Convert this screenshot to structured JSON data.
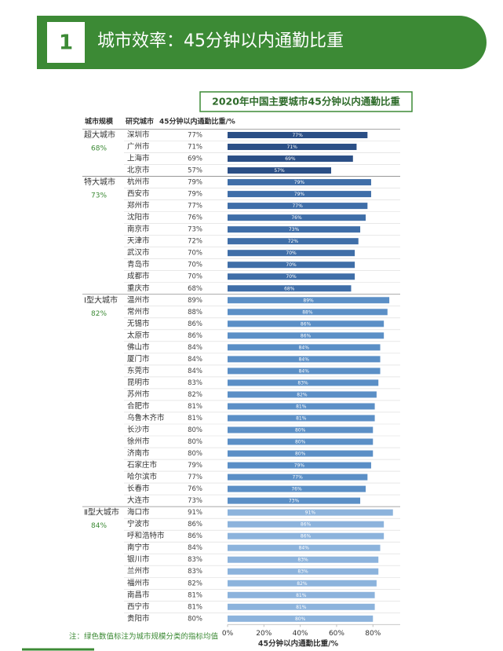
{
  "slide": {
    "number": "1",
    "title": "城市效率：45分钟以内通勤比重"
  },
  "chart_data": {
    "type": "bar",
    "orientation": "horizontal",
    "title": "2020年中国主要城市45分钟以内通勤比重",
    "headers": [
      "城市规模",
      "研究城市",
      "45分钟以内通勤比重/%"
    ],
    "xlabel": "45分钟以内通勤比重/%",
    "xlim": [
      0,
      95
    ],
    "xticks": [
      {
        "value": 0,
        "label": "0%"
      },
      {
        "value": 20,
        "label": "20%"
      },
      {
        "value": 40,
        "label": "40%"
      },
      {
        "value": 60,
        "label": "60%"
      },
      {
        "value": 80,
        "label": "80%"
      }
    ],
    "groups": [
      {
        "name": "超大城市",
        "mean": "68%",
        "color": "#2b4f86",
        "categories": [
          "深圳市",
          "广州市",
          "上海市",
          "北京市"
        ],
        "values": [
          77,
          71,
          69,
          57
        ],
        "value_labels": [
          "77%",
          "71%",
          "69%",
          "57%"
        ]
      },
      {
        "name": "特大城市",
        "mean": "73%",
        "color": "#3f6ea8",
        "categories": [
          "杭州市",
          "西安市",
          "郑州市",
          "沈阳市",
          "南京市",
          "天津市",
          "武汉市",
          "青岛市",
          "成都市",
          "重庆市"
        ],
        "values": [
          79,
          79,
          77,
          76,
          73,
          72,
          70,
          70,
          70,
          68
        ],
        "value_labels": [
          "79%",
          "79%",
          "77%",
          "76%",
          "73%",
          "72%",
          "70%",
          "70%",
          "70%",
          "68%"
        ]
      },
      {
        "name": "Ⅰ型大城市",
        "mean": "82%",
        "color": "#5b8fc6",
        "categories": [
          "温州市",
          "常州市",
          "无锡市",
          "太原市",
          "佛山市",
          "厦门市",
          "东莞市",
          "昆明市",
          "苏州市",
          "合肥市",
          "乌鲁木齐市",
          "长沙市",
          "徐州市",
          "济南市",
          "石家庄市",
          "哈尔滨市",
          "长春市",
          "大连市"
        ],
        "values": [
          89,
          88,
          86,
          86,
          84,
          84,
          84,
          83,
          82,
          81,
          81,
          80,
          80,
          80,
          79,
          77,
          76,
          73
        ],
        "value_labels": [
          "89%",
          "88%",
          "86%",
          "86%",
          "84%",
          "84%",
          "84%",
          "83%",
          "82%",
          "81%",
          "81%",
          "80%",
          "80%",
          "80%",
          "79%",
          "77%",
          "76%",
          "73%"
        ]
      },
      {
        "name": "Ⅱ型大城市",
        "mean": "84%",
        "color": "#8cb3dc",
        "categories": [
          "海口市",
          "宁波市",
          "呼和浩特市",
          "南宁市",
          "银川市",
          "兰州市",
          "福州市",
          "南昌市",
          "西宁市",
          "贵阳市"
        ],
        "values": [
          91,
          86,
          86,
          84,
          83,
          83,
          82,
          81,
          81,
          80
        ],
        "value_labels": [
          "91%",
          "86%",
          "86%",
          "84%",
          "83%",
          "83%",
          "82%",
          "81%",
          "81%",
          "80%"
        ]
      }
    ],
    "note": "注：绿色数值标注为城市规模分类的指标均值"
  }
}
